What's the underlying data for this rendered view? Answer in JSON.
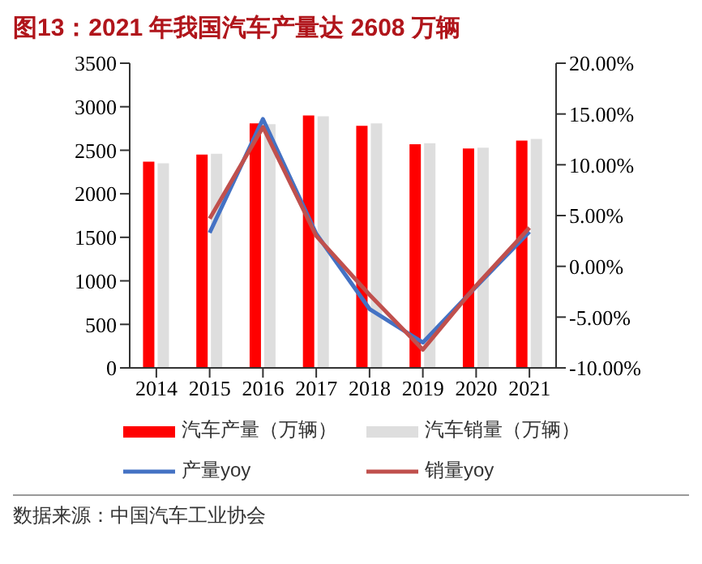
{
  "chart_data": {
    "type": "bar",
    "title": "图13：2021 年我国汽车产量达 2608 万辆",
    "categories": [
      "2014",
      "2015",
      "2016",
      "2017",
      "2018",
      "2019",
      "2020",
      "2021"
    ],
    "series": [
      {
        "name": "汽车产量（万辆）",
        "color": "#ff0000",
        "values": [
          2370,
          2450,
          2810,
          2900,
          2780,
          2570,
          2520,
          2610
        ]
      },
      {
        "name": "汽车销量（万辆）",
        "color": "#dedede",
        "values": [
          2350,
          2460,
          2800,
          2890,
          2810,
          2580,
          2530,
          2630
        ]
      },
      {
        "name": "产量yoy",
        "type": "line",
        "axis": "y2",
        "color": "#4472c4",
        "values": [
          null,
          3.3,
          14.5,
          3.2,
          -4.2,
          -7.5,
          -2.0,
          3.4
        ]
      },
      {
        "name": "销量yoy",
        "type": "line",
        "axis": "y2",
        "color": "#c0504d",
        "values": [
          null,
          4.7,
          13.7,
          3.0,
          -2.8,
          -8.2,
          -1.9,
          3.8
        ]
      }
    ],
    "ylim": [
      0,
      3500
    ],
    "yticks": [
      0,
      500,
      1000,
      1500,
      2000,
      2500,
      3000,
      3500
    ],
    "y2lim": [
      -10,
      20
    ],
    "y2ticks": [
      {
        "value": -10,
        "label": "-10.00%"
      },
      {
        "value": -5,
        "label": "-5.00%"
      },
      {
        "value": 0,
        "label": "0.00%"
      },
      {
        "value": 5,
        "label": "5.00%"
      },
      {
        "value": 10,
        "label": "10.00%"
      },
      {
        "value": 15,
        "label": "15.00%"
      },
      {
        "value": 20,
        "label": "20.00%"
      }
    ],
    "grid": false,
    "legend": "bottom",
    "marker": "none",
    "line_style": "solid",
    "annotations": [
      "数据来源：中国汽车工业协会"
    ]
  }
}
